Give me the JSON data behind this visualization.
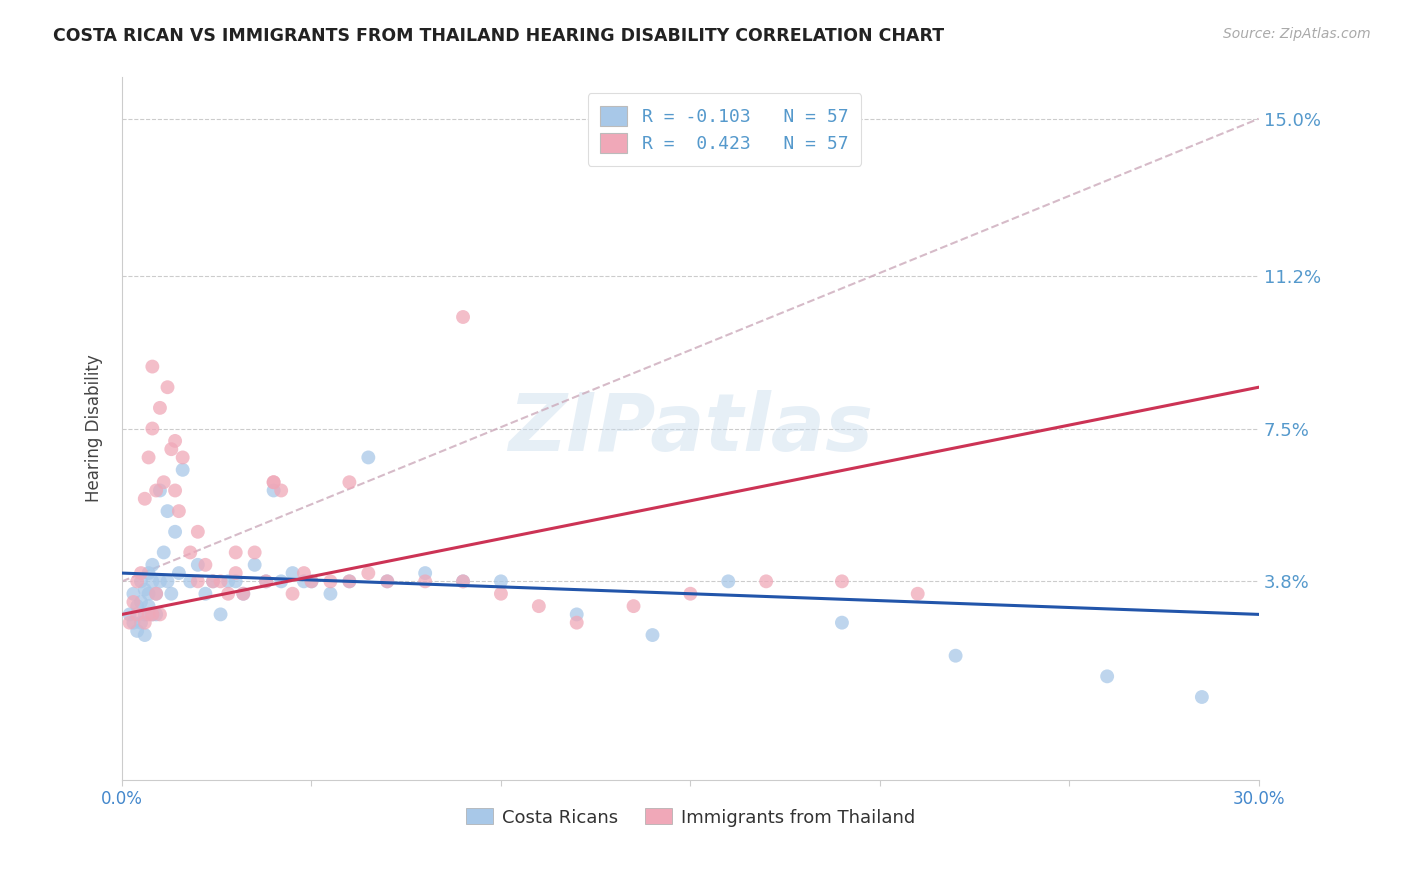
{
  "title": "COSTA RICAN VS IMMIGRANTS FROM THAILAND HEARING DISABILITY CORRELATION CHART",
  "source": "Source: ZipAtlas.com",
  "ylabel": "Hearing Disability",
  "yticks": [
    "3.8%",
    "7.5%",
    "11.2%",
    "15.0%"
  ],
  "ytick_vals": [
    0.038,
    0.075,
    0.112,
    0.15
  ],
  "xlim": [
    0.0,
    0.3
  ],
  "ylim": [
    -0.01,
    0.16
  ],
  "watermark_text": "ZIPatlas",
  "legend_r_labels": [
    "R = -0.103   N = 57",
    "R =  0.423   N = 57"
  ],
  "legend_labels": [
    "Costa Ricans",
    "Immigrants from Thailand"
  ],
  "color_blue": "#a8c8e8",
  "color_pink": "#f0a8b8",
  "line_blue": "#2255aa",
  "line_pink": "#cc3355",
  "line_dashed_color": "#ccaabb",
  "blue_scatter_x": [
    0.002,
    0.003,
    0.003,
    0.004,
    0.004,
    0.005,
    0.005,
    0.005,
    0.006,
    0.006,
    0.006,
    0.007,
    0.007,
    0.007,
    0.008,
    0.008,
    0.008,
    0.009,
    0.009,
    0.01,
    0.01,
    0.011,
    0.012,
    0.012,
    0.013,
    0.014,
    0.015,
    0.016,
    0.018,
    0.02,
    0.022,
    0.024,
    0.026,
    0.028,
    0.03,
    0.032,
    0.035,
    0.038,
    0.04,
    0.042,
    0.045,
    0.048,
    0.05,
    0.055,
    0.06,
    0.065,
    0.07,
    0.08,
    0.09,
    0.1,
    0.12,
    0.14,
    0.16,
    0.19,
    0.22,
    0.26,
    0.285
  ],
  "blue_scatter_y": [
    0.03,
    0.035,
    0.028,
    0.032,
    0.026,
    0.033,
    0.038,
    0.028,
    0.03,
    0.036,
    0.025,
    0.032,
    0.04,
    0.035,
    0.03,
    0.038,
    0.042,
    0.03,
    0.035,
    0.038,
    0.06,
    0.045,
    0.038,
    0.055,
    0.035,
    0.05,
    0.04,
    0.065,
    0.038,
    0.042,
    0.035,
    0.038,
    0.03,
    0.038,
    0.038,
    0.035,
    0.042,
    0.038,
    0.06,
    0.038,
    0.04,
    0.038,
    0.038,
    0.035,
    0.038,
    0.068,
    0.038,
    0.04,
    0.038,
    0.038,
    0.03,
    0.025,
    0.038,
    0.028,
    0.02,
    0.015,
    0.01
  ],
  "pink_scatter_x": [
    0.002,
    0.003,
    0.004,
    0.004,
    0.005,
    0.006,
    0.006,
    0.007,
    0.007,
    0.008,
    0.008,
    0.009,
    0.009,
    0.01,
    0.01,
    0.011,
    0.012,
    0.013,
    0.014,
    0.015,
    0.016,
    0.018,
    0.02,
    0.022,
    0.024,
    0.026,
    0.028,
    0.03,
    0.032,
    0.035,
    0.038,
    0.04,
    0.042,
    0.045,
    0.048,
    0.05,
    0.055,
    0.06,
    0.065,
    0.07,
    0.08,
    0.09,
    0.1,
    0.11,
    0.12,
    0.135,
    0.15,
    0.17,
    0.19,
    0.21,
    0.008,
    0.014,
    0.02,
    0.03,
    0.04,
    0.06,
    0.09
  ],
  "pink_scatter_y": [
    0.028,
    0.033,
    0.03,
    0.038,
    0.04,
    0.028,
    0.058,
    0.03,
    0.068,
    0.03,
    0.075,
    0.035,
    0.06,
    0.03,
    0.08,
    0.062,
    0.085,
    0.07,
    0.06,
    0.055,
    0.068,
    0.045,
    0.038,
    0.042,
    0.038,
    0.038,
    0.035,
    0.04,
    0.035,
    0.045,
    0.038,
    0.062,
    0.06,
    0.035,
    0.04,
    0.038,
    0.038,
    0.062,
    0.04,
    0.038,
    0.038,
    0.038,
    0.035,
    0.032,
    0.028,
    0.032,
    0.035,
    0.038,
    0.038,
    0.035,
    0.09,
    0.072,
    0.05,
    0.045,
    0.062,
    0.038,
    0.102
  ],
  "blue_line_y_start": 0.04,
  "blue_line_y_end": 0.03,
  "pink_line_y_start": 0.03,
  "pink_line_y_end": 0.085,
  "dashed_line_y_start": 0.038,
  "dashed_line_y_end": 0.15
}
